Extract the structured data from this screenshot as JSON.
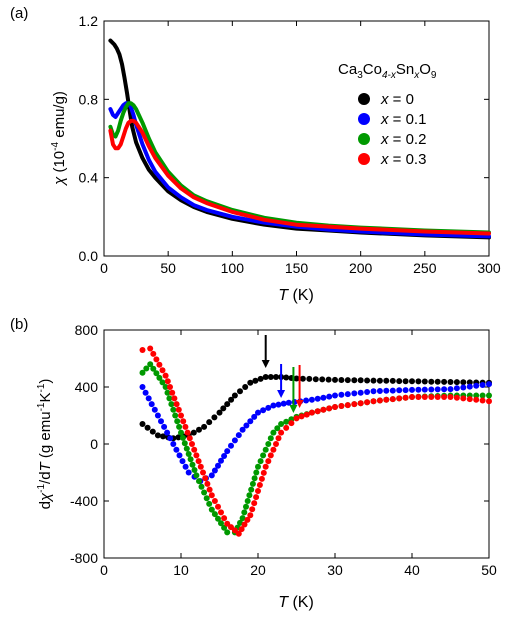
{
  "chart_data": [
    {
      "panel_label": "(a)",
      "type": "line",
      "xlabel": "T (K)",
      "ylabel": "χ (10⁻⁴ emu/g)",
      "xlim": [
        0,
        300
      ],
      "ylim": [
        0,
        1.2
      ],
      "xticks": [
        0,
        50,
        100,
        150,
        200,
        250,
        300
      ],
      "yticks": [
        0.0,
        0.4,
        0.8,
        1.2
      ],
      "legend_title": "Ca3Co4-xSnxO9",
      "legend_placement": "top-right",
      "grid": false,
      "series": [
        {
          "name": "x = 0",
          "color": "#000000",
          "x": [
            5,
            8,
            10,
            12,
            14,
            16,
            18,
            20,
            22,
            25,
            30,
            35,
            40,
            50,
            60,
            70,
            80,
            100,
            125,
            150,
            175,
            200,
            250,
            300
          ],
          "y": [
            1.1,
            1.08,
            1.06,
            1.03,
            0.98,
            0.91,
            0.83,
            0.74,
            0.66,
            0.58,
            0.5,
            0.44,
            0.4,
            0.33,
            0.285,
            0.25,
            0.225,
            0.19,
            0.16,
            0.14,
            0.13,
            0.12,
            0.105,
            0.095
          ]
        },
        {
          "name": "x = 0.1",
          "color": "#0000ff",
          "x": [
            5,
            7,
            9,
            11,
            13,
            15,
            17,
            19,
            21,
            23,
            25,
            30,
            35,
            40,
            50,
            60,
            70,
            80,
            100,
            125,
            150,
            175,
            200,
            250,
            300
          ],
          "y": [
            0.75,
            0.72,
            0.71,
            0.73,
            0.75,
            0.77,
            0.78,
            0.78,
            0.76,
            0.72,
            0.67,
            0.57,
            0.49,
            0.43,
            0.35,
            0.3,
            0.26,
            0.235,
            0.2,
            0.17,
            0.15,
            0.135,
            0.125,
            0.11,
            0.1
          ]
        },
        {
          "name": "x = 0.2",
          "color": "#009900",
          "x": [
            5,
            7,
            9,
            11,
            13,
            15,
            17,
            19,
            21,
            23,
            25,
            30,
            35,
            40,
            50,
            60,
            70,
            80,
            100,
            125,
            150,
            175,
            200,
            250,
            300
          ],
          "y": [
            0.66,
            0.62,
            0.61,
            0.64,
            0.69,
            0.73,
            0.76,
            0.78,
            0.78,
            0.77,
            0.75,
            0.68,
            0.6,
            0.53,
            0.43,
            0.36,
            0.31,
            0.28,
            0.235,
            0.195,
            0.17,
            0.155,
            0.145,
            0.13,
            0.12
          ]
        },
        {
          "name": "x = 0.3",
          "color": "#ff0000",
          "x": [
            5,
            7,
            9,
            11,
            13,
            15,
            17,
            19,
            21,
            23,
            25,
            30,
            35,
            40,
            50,
            60,
            70,
            80,
            100,
            125,
            150,
            175,
            200,
            250,
            300
          ],
          "y": [
            0.64,
            0.57,
            0.55,
            0.55,
            0.57,
            0.61,
            0.65,
            0.68,
            0.69,
            0.69,
            0.68,
            0.63,
            0.56,
            0.5,
            0.41,
            0.345,
            0.3,
            0.27,
            0.225,
            0.185,
            0.16,
            0.15,
            0.14,
            0.125,
            0.115
          ]
        }
      ]
    },
    {
      "panel_label": "(b)",
      "type": "scatter",
      "xlabel": "T (K)",
      "ylabel": "dχ⁻¹/dT (g emu⁻¹K⁻¹)",
      "xlim": [
        0,
        50
      ],
      "ylim": [
        -800,
        800
      ],
      "xticks": [
        0,
        10,
        20,
        30,
        40,
        50
      ],
      "yticks": [
        -800,
        -400,
        0,
        400,
        800
      ],
      "grid": false,
      "series": [
        {
          "name": "x = 0",
          "color": "#000000",
          "x": [
            5,
            7,
            9,
            11,
            13,
            15,
            17,
            19,
            21,
            23,
            25,
            30,
            35,
            40,
            45,
            50
          ],
          "y": [
            140,
            60,
            40,
            60,
            120,
            220,
            340,
            430,
            470,
            470,
            460,
            450,
            445,
            440,
            435,
            430
          ]
        },
        {
          "name": "x = 0.1",
          "color": "#0000ff",
          "x": [
            5,
            7,
            9,
            11,
            12.5,
            14,
            16,
            18,
            20,
            22,
            24,
            27,
            30,
            35,
            40,
            45,
            50
          ],
          "y": [
            400,
            200,
            0,
            -200,
            -260,
            -220,
            -50,
            100,
            220,
            270,
            290,
            310,
            340,
            370,
            380,
            385,
            420
          ]
        },
        {
          "name": "x = 0.2",
          "color": "#009900",
          "x": [
            5,
            6,
            8,
            10,
            12,
            14,
            16,
            17,
            18,
            20,
            22,
            23,
            25,
            27,
            30,
            35,
            40,
            45,
            50
          ],
          "y": [
            500,
            560,
            400,
            80,
            -220,
            -460,
            -620,
            -620,
            -520,
            -160,
            80,
            140,
            190,
            220,
            260,
            300,
            330,
            340,
            340
          ]
        },
        {
          "name": "x = 0.3",
          "color": "#ff0000",
          "x": [
            5,
            6,
            8,
            10,
            12,
            14,
            16,
            17.5,
            19,
            21,
            23,
            25,
            27,
            30,
            35,
            40,
            45,
            50
          ],
          "y": [
            660,
            670,
            480,
            200,
            -80,
            -360,
            -560,
            -630,
            -500,
            -160,
            80,
            180,
            220,
            260,
            300,
            330,
            330,
            300
          ]
        }
      ],
      "arrows": [
        {
          "color": "#000000",
          "x": 21
        },
        {
          "color": "#0000ff",
          "x": 23
        },
        {
          "color": "#009900",
          "x": 24.6
        },
        {
          "color": "#ff0000",
          "x": 25.4
        }
      ]
    }
  ],
  "labels": {
    "a": "(a)",
    "b": "(b)",
    "legend_formula": {
      "base1": "Ca",
      "sub1": "3",
      "base2": "Co",
      "sub2": "4-x",
      "base3": "Sn",
      "sub3": "x",
      "base4": "O",
      "sub4": "9"
    }
  }
}
